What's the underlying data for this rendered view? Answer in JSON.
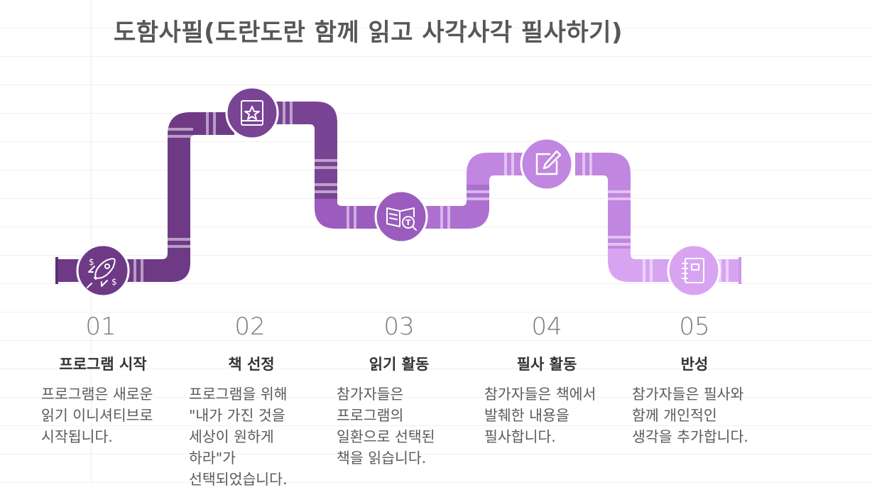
{
  "title": "도함사필(도란도란 함께 읽고 사각사각 필사하기)",
  "steps": [
    {
      "number": "01",
      "title": "프로그램 시작",
      "desc": "프로그램은 새로운 읽기 이니셔티브로 시작됩니다.",
      "icon": "rocket-icon",
      "color": "#6e3a86"
    },
    {
      "number": "02",
      "title": "책 선정",
      "desc": "프로그램을 위해 \"내가 가진 것을 세상이 원하게 하라\"가 선택되었습니다.",
      "icon": "book-star-icon",
      "color": "#7a4494"
    },
    {
      "number": "03",
      "title": "읽기 활동",
      "desc": "참가자들은 프로그램의 일환으로 선택된 책을 읽습니다.",
      "icon": "reading-icon",
      "color": "#a265c3"
    },
    {
      "number": "04",
      "title": "필사 활동",
      "desc": "참가자들은 책에서 발췌한 내용을 필사합니다.",
      "icon": "edit-icon",
      "color": "#c186e0"
    },
    {
      "number": "05",
      "title": "반성",
      "desc": "참가자들은 필사와 함께 개인적인 생각을 추가합니다.",
      "icon": "notebook-icon",
      "color": "#d8a4f2"
    }
  ]
}
